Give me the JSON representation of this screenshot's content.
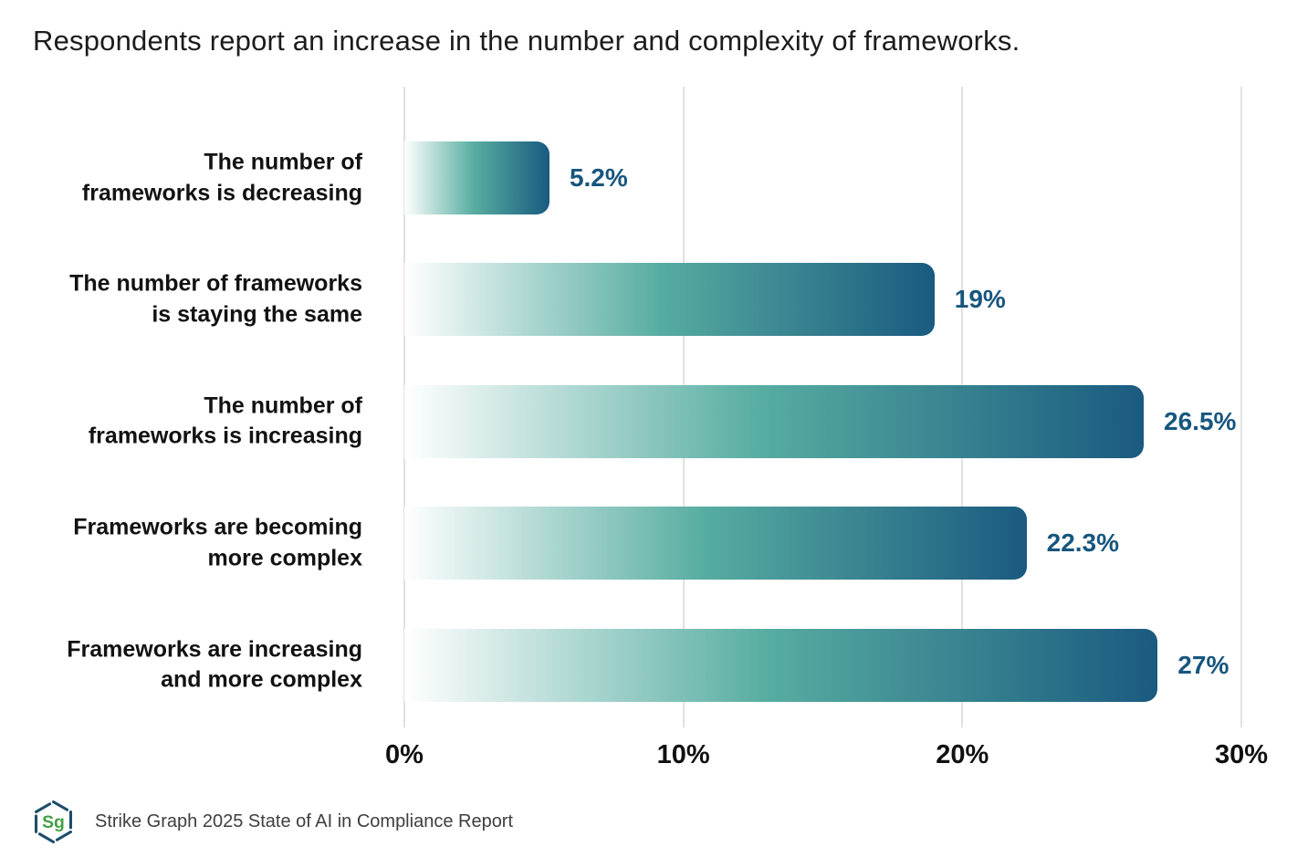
{
  "title": "Respondents report an increase in the number and complexity of frameworks.",
  "chart_data": {
    "type": "bar",
    "orientation": "horizontal",
    "title": "Respondents report an increase in the number and complexity of frameworks.",
    "categories": [
      "The number of frameworks is decreasing",
      "The number of frameworks is staying the same",
      "The number of frameworks is increasing",
      "Frameworks are becoming more complex",
      "Frameworks are increasing and more complex"
    ],
    "categories_display": [
      "The number of\nframeworks is decreasing",
      "The number of frameworks\nis staying the same",
      "The number of\nframeworks is increasing",
      "Frameworks are becoming\nmore complex",
      "Frameworks are increasing\nand more complex"
    ],
    "values": [
      5.2,
      19,
      26.5,
      22.3,
      27
    ],
    "value_labels": [
      "5.2%",
      "19%",
      "26.5%",
      "22.3%",
      "27%"
    ],
    "xlabel": "",
    "ylabel": "",
    "xlim": [
      0,
      30
    ],
    "x_tick_labels": [
      "0%",
      "10%",
      "20%",
      "30%"
    ],
    "grid": "vertical-gridlines",
    "legend": "none"
  },
  "colors": {
    "background": "#ffffff",
    "bar_gradient_start": "#ffffff",
    "bar_gradient_mid": "#57ada1",
    "bar_gradient_end": "#1a5a80",
    "value_label": "#17567e",
    "gridline": "#e1e1e1",
    "title_text": "#1c1c1c",
    "category_text": "#121212",
    "tick_text": "#101010",
    "footer_text": "#3e3e3e",
    "logo_green": "#43a047",
    "logo_blue": "#1c4d6b"
  },
  "footer": {
    "logo_text": "Sg",
    "source_text": "Strike Graph 2025 State of AI in Compliance Report"
  }
}
